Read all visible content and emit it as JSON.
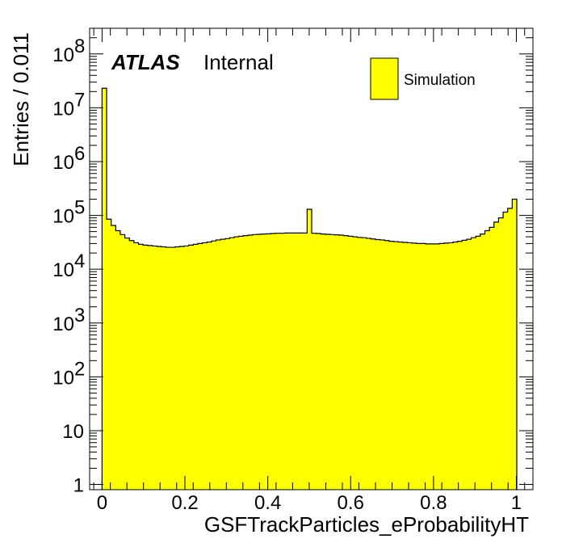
{
  "chart_data": {
    "type": "bar",
    "xlabel": "GSFTrackParticles_eProbabilityHT",
    "ylabel": "Entries / 0.011",
    "xlim": [
      -0.03,
      1.04
    ],
    "ylim": [
      0.8,
      300000000
    ],
    "yscale": "log",
    "bin_width": 0.011,
    "x_ticks": [
      {
        "value": 0,
        "label": "0"
      },
      {
        "value": 0.2,
        "label": "0.2"
      },
      {
        "value": 0.4,
        "label": "0.4"
      },
      {
        "value": 0.6,
        "label": "0.6"
      },
      {
        "value": 0.8,
        "label": "0.8"
      },
      {
        "value": 1,
        "label": "1"
      }
    ],
    "y_ticks": [
      {
        "value": 1,
        "label": "1",
        "exp": ""
      },
      {
        "value": 10,
        "label": "10",
        "exp": ""
      },
      {
        "value": 100,
        "label": "10",
        "exp": "2"
      },
      {
        "value": 1000,
        "label": "10",
        "exp": "3"
      },
      {
        "value": 10000,
        "label": "10",
        "exp": "4"
      },
      {
        "value": 100000,
        "label": "10",
        "exp": "5"
      },
      {
        "value": 1000000,
        "label": "10",
        "exp": "6"
      },
      {
        "value": 10000000,
        "label": "10",
        "exp": "7"
      },
      {
        "value": 100000000,
        "label": "10",
        "exp": "8"
      }
    ],
    "grid": false,
    "legend": {
      "position": "top-right"
    },
    "series": [
      {
        "name": "Simulation",
        "color": "#ffff00",
        "edge_color": "#000000",
        "x_start": [
          0,
          0.011,
          0.022,
          0.033,
          0.044,
          0.055,
          0.066,
          0.077,
          0.088,
          0.099,
          0.11,
          0.121,
          0.132,
          0.143,
          0.154,
          0.165,
          0.176,
          0.187,
          0.198,
          0.209,
          0.22,
          0.231,
          0.242,
          0.253,
          0.264,
          0.275,
          0.286,
          0.297,
          0.308,
          0.319,
          0.33,
          0.341,
          0.352,
          0.363,
          0.374,
          0.385,
          0.396,
          0.407,
          0.418,
          0.429,
          0.44,
          0.451,
          0.462,
          0.473,
          0.484,
          0.495,
          0.506,
          0.517,
          0.528,
          0.539,
          0.55,
          0.561,
          0.572,
          0.583,
          0.594,
          0.605,
          0.616,
          0.627,
          0.638,
          0.649,
          0.66,
          0.671,
          0.682,
          0.693,
          0.704,
          0.715,
          0.726,
          0.737,
          0.748,
          0.759,
          0.77,
          0.781,
          0.792,
          0.803,
          0.814,
          0.825,
          0.836,
          0.847,
          0.858,
          0.869,
          0.88,
          0.891,
          0.902,
          0.913,
          0.924,
          0.935,
          0.946,
          0.957,
          0.968,
          0.979,
          0.99
        ],
        "values": [
          23000000,
          85000,
          65000,
          52000,
          44000,
          38000,
          34000,
          31000,
          29000,
          28000,
          27500,
          27000,
          26500,
          26000,
          25500,
          25500,
          26000,
          26500,
          27000,
          28000,
          29000,
          30000,
          31000,
          32000,
          33500,
          35000,
          36000,
          37000,
          38500,
          40000,
          41000,
          42000,
          43000,
          44000,
          44500,
          45000,
          45500,
          46000,
          46500,
          46500,
          47000,
          47000,
          47000,
          47000,
          47000,
          130000,
          46500,
          46000,
          45000,
          44500,
          44000,
          43500,
          43000,
          42000,
          41000,
          40000,
          39000,
          38500,
          37500,
          36500,
          35500,
          35000,
          34000,
          33000,
          32500,
          32000,
          31500,
          31000,
          30500,
          30000,
          30000,
          29500,
          29500,
          29500,
          30000,
          30500,
          31000,
          32000,
          33000,
          34500,
          36000,
          38500,
          41000,
          45000,
          52000,
          60000,
          75000,
          90000,
          115000,
          135000,
          200000
        ]
      }
    ]
  },
  "annotations": {
    "atlas_label": "ATLAS",
    "status_label": "Internal"
  },
  "legend_entries": [
    {
      "label": "Simulation",
      "color": "#ffff00"
    }
  ]
}
